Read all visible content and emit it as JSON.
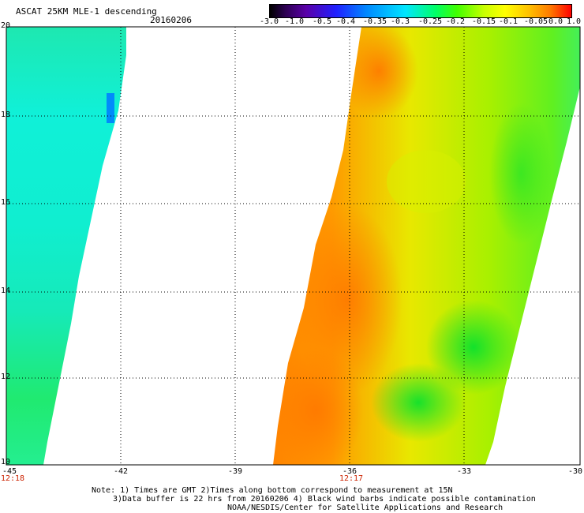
{
  "header": {
    "title": "ASCAT 25KM MLE-1 descending",
    "date": "20160206"
  },
  "colorbar": {
    "ticks": [
      "-3.0",
      "-1.0",
      "-0.5",
      "-0.4",
      "-0.35",
      "-0.3",
      "-0.25",
      "-0.2",
      "-0.15",
      "-0.1",
      "-0.05",
      "0.0",
      "1.0"
    ],
    "colors": [
      "#000000",
      "#2b0050",
      "#5a00a8",
      "#2020ff",
      "#0088ff",
      "#00e6ff",
      "#00ff66",
      "#40ff00",
      "#c8ff00",
      "#ffff00",
      "#ffc000",
      "#ff7a00",
      "#ff0000"
    ]
  },
  "axes": {
    "y_labels": [
      "20",
      "18",
      "16",
      "14",
      "12",
      "10"
    ],
    "x_labels": [
      "-45",
      "-42",
      "-39",
      "-36",
      "-33",
      "-30"
    ],
    "times": [
      "12:18",
      "12:17"
    ]
  },
  "notes": {
    "line1": "Note: 1) Times are GMT 2)Times along bottom correspond to measurement at 15N",
    "line2": "3)Data buffer is 22 hrs from 20160206 4) Black wind barbs indicate possible contamination",
    "line3": "NOAA/NESDIS/Center for Satellite Applications and Research"
  }
}
